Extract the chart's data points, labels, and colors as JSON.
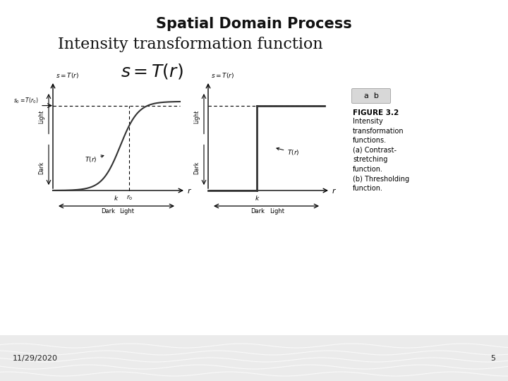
{
  "title": "Spatial Domain Process",
  "intensity_text": "Intensity transformation function",
  "formula": "$s = T(r)$",
  "date_text": "11/29/2020",
  "page_num": "5",
  "figure_label": "FIGURE 3.2",
  "figure_desc": "Intensity\ntransformation\nfunctions.\n(a) Contrast-\nstretching\nfunction.\n(b) Thresholding\nfunction.",
  "ab_label": "a  b",
  "bg_white": "#ffffff",
  "bg_footer": "#e8e8e8",
  "text_black": "#111111"
}
